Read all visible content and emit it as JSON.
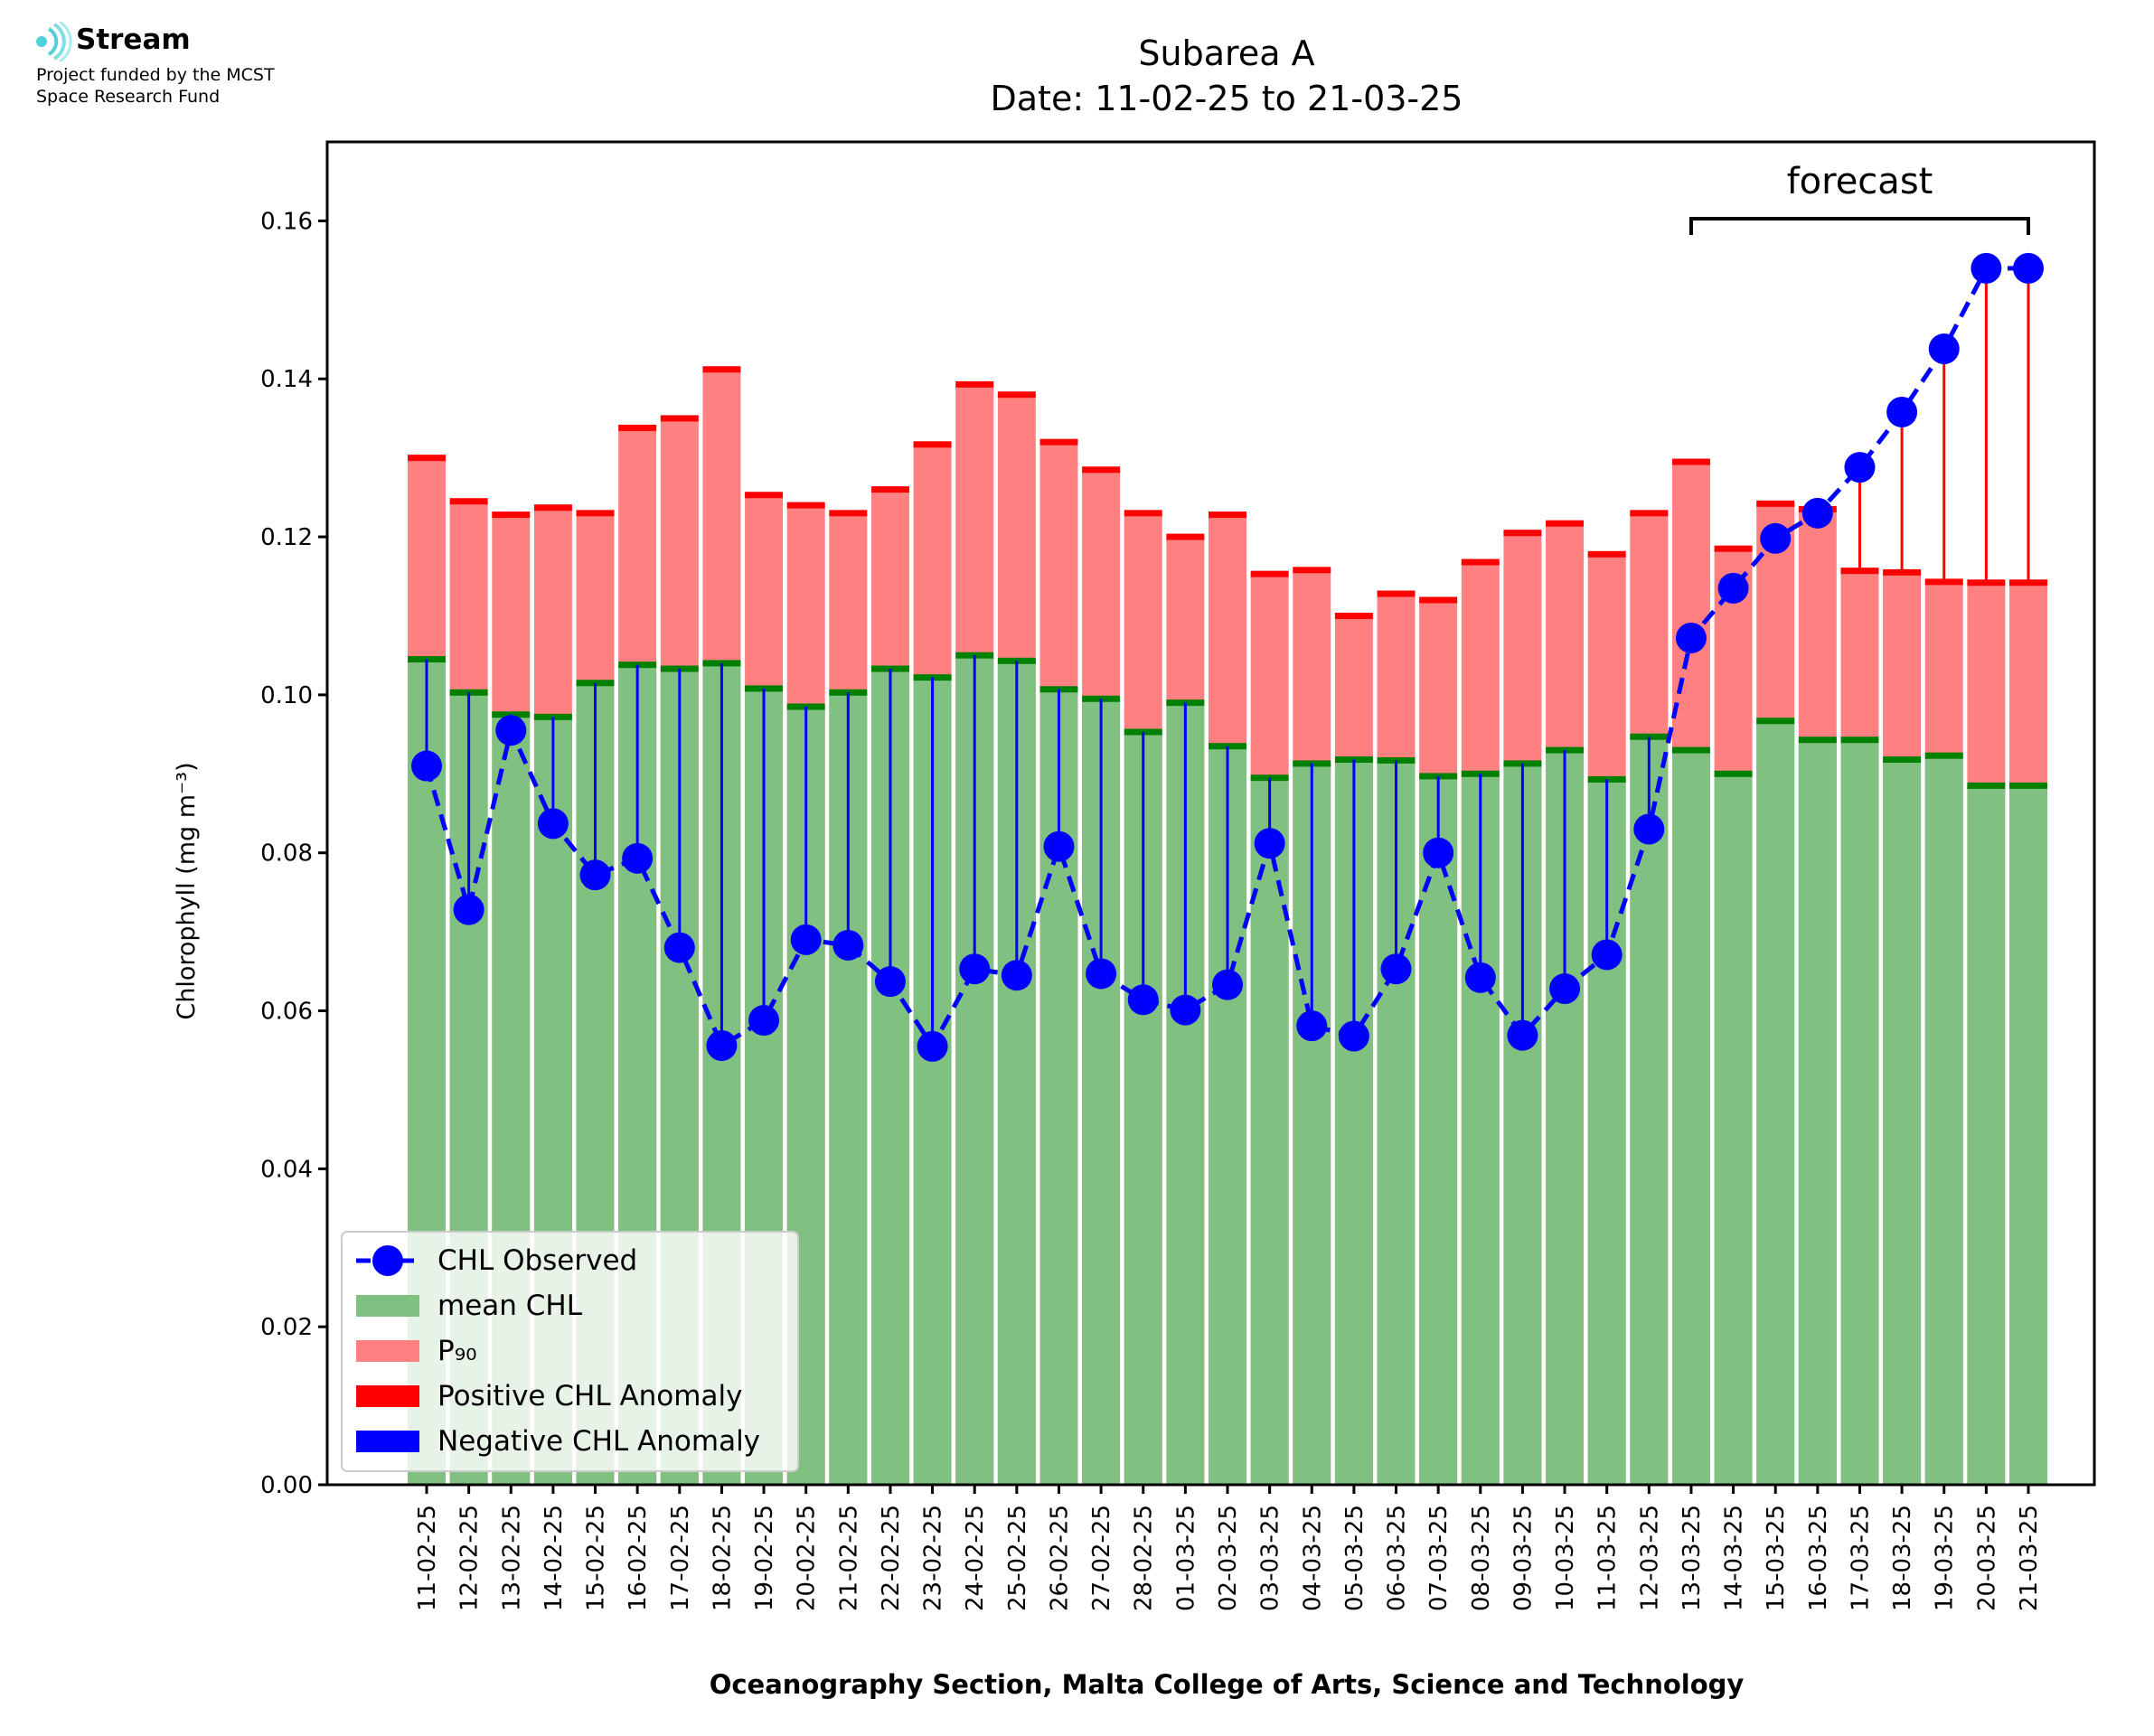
{
  "logo": {
    "name": "Stream",
    "line1": "Project funded by the MCST",
    "line2": "Space Research Fund"
  },
  "chart_data": {
    "type": "bar",
    "title": "Subarea A",
    "subtitle": "Date: 11-02-25 to 21-03-25",
    "xlabel": "Oceanography Section, Malta College of Arts, Science and Technology",
    "ylabel": "Chlorophyll (mg m⁻³)",
    "ylim": [
      0,
      0.17
    ],
    "yticks": [
      0.0,
      0.02,
      0.04,
      0.06,
      0.08,
      0.1,
      0.12,
      0.14,
      0.16
    ],
    "ytick_labels": [
      "0.00",
      "0.02",
      "0.04",
      "0.06",
      "0.08",
      "0.10",
      "0.12",
      "0.14",
      "0.16"
    ],
    "grid": false,
    "legend_position": "lower-left",
    "annotation": {
      "text": "forecast",
      "from_category": "13-03-25",
      "to_category": "21-03-25"
    },
    "categories": [
      "11-02-25",
      "12-02-25",
      "13-02-25",
      "14-02-25",
      "15-02-25",
      "16-02-25",
      "17-02-25",
      "18-02-25",
      "19-02-25",
      "20-02-25",
      "21-02-25",
      "22-02-25",
      "23-02-25",
      "24-02-25",
      "25-02-25",
      "26-02-25",
      "27-02-25",
      "28-02-25",
      "01-03-25",
      "02-03-25",
      "03-03-25",
      "04-03-25",
      "05-03-25",
      "06-03-25",
      "07-03-25",
      "08-03-25",
      "09-03-25",
      "10-03-25",
      "11-03-25",
      "12-03-25",
      "13-03-25",
      "14-03-25",
      "15-03-25",
      "16-03-25",
      "17-03-25",
      "18-03-25",
      "19-03-25",
      "20-03-25",
      "21-03-25"
    ],
    "series": [
      {
        "name": "CHL Observed",
        "color": "#0000ff",
        "style": "dashed-line-with-markers",
        "values": [
          0.091,
          0.0728,
          0.0955,
          0.0837,
          0.0772,
          0.0793,
          0.068,
          0.0556,
          0.0588,
          0.069,
          0.0683,
          0.0637,
          0.0555,
          0.0653,
          0.0645,
          0.0808,
          0.0647,
          0.0614,
          0.0601,
          0.0633,
          0.0812,
          0.0581,
          0.0568,
          0.0653,
          0.08,
          0.0642,
          0.0569,
          0.0628,
          0.0671,
          0.083,
          0.1072,
          0.1135,
          0.1198,
          0.123,
          0.1288,
          0.1358,
          0.1438,
          0.154,
          0.154
        ]
      },
      {
        "name": "mean CHL",
        "color": "#80c080",
        "style": "bar",
        "values": [
          0.1045,
          0.1003,
          0.0975,
          0.0972,
          0.1015,
          0.1038,
          0.1033,
          0.104,
          0.1008,
          0.0985,
          0.1003,
          0.1033,
          0.1022,
          0.105,
          0.1043,
          0.1007,
          0.0995,
          0.0953,
          0.099,
          0.0935,
          0.0895,
          0.0913,
          0.0918,
          0.0917,
          0.0897,
          0.09,
          0.0913,
          0.093,
          0.0893,
          0.0947,
          0.093,
          0.09,
          0.0967,
          0.0943,
          0.0943,
          0.0918,
          0.0923,
          0.0885,
          0.0885
        ]
      },
      {
        "name": "P₉₀",
        "color": "#ff8080",
        "style": "bar",
        "values": [
          0.13,
          0.1245,
          0.1228,
          0.1237,
          0.123,
          0.1338,
          0.135,
          0.1412,
          0.1253,
          0.124,
          0.123,
          0.126,
          0.1317,
          0.1393,
          0.138,
          0.132,
          0.1285,
          0.123,
          0.12,
          0.1228,
          0.1153,
          0.1158,
          0.11,
          0.1128,
          0.112,
          0.1168,
          0.1205,
          0.1217,
          0.1178,
          0.123,
          0.1295,
          0.1185,
          0.1242,
          0.1235,
          0.1157,
          0.1155,
          0.1143,
          0.1142,
          0.1142
        ]
      },
      {
        "name": "Positive CHL Anomaly",
        "color": "#ff0000",
        "style": "bar"
      },
      {
        "name": "Negative CHL Anomaly",
        "color": "#0000ff",
        "style": "bar"
      }
    ]
  }
}
